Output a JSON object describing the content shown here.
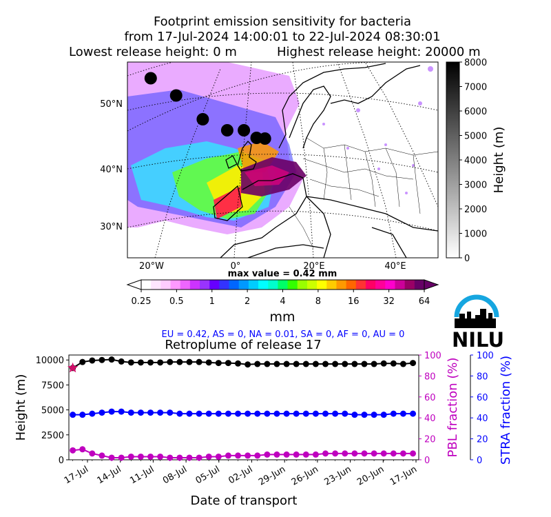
{
  "header": {
    "title_line1": "Footprint emission sensitivity for bacteria",
    "title_line2": "from 17-Jul-2024 14:00:01 to 22-Jul-2024 08:30:01",
    "lowest_release": "Lowest release height: 0 m",
    "highest_release": "Highest release height: 20000 m"
  },
  "map": {
    "lat_labels": [
      "50°N",
      "40°N",
      "30°N"
    ],
    "lon_labels": [
      "20°W",
      "0°",
      "20°E",
      "40°E"
    ],
    "max_value_text": "max value = 0.42 mm",
    "release_points": [
      {
        "lon": -22,
        "lat": 55
      },
      {
        "lon": -15,
        "lat": 52
      },
      {
        "lon": -8,
        "lat": 48
      },
      {
        "lon": -2,
        "lat": 46
      },
      {
        "lon": 2,
        "lat": 46
      },
      {
        "lon": 5,
        "lat": 45
      },
      {
        "lon": 7,
        "lat": 45
      }
    ]
  },
  "height_colorbar": {
    "label": "Height (m)",
    "ticks": [
      "8000",
      "7000",
      "6000",
      "5000",
      "4000",
      "3000",
      "2000",
      "1000",
      "0"
    ]
  },
  "footprint_colorbar": {
    "unit_label": "mm",
    "ticks": [
      "0.25",
      "0.5",
      "1",
      "2",
      "4",
      "8",
      "16",
      "32",
      "64"
    ],
    "colors": [
      "#ffffff",
      "#ffe6ff",
      "#ffccff",
      "#ff99ff",
      "#ee66ff",
      "#cc33ff",
      "#9933ff",
      "#6600ff",
      "#3333ff",
      "#0066ff",
      "#0099ff",
      "#00ccff",
      "#00ffff",
      "#00ffcc",
      "#00ff66",
      "#33ff00",
      "#99ff00",
      "#ccff00",
      "#ffff00",
      "#ffcc00",
      "#ff9900",
      "#ff6600",
      "#ff3333",
      "#ff0066",
      "#ff0099",
      "#ff00cc",
      "#cc0099",
      "#990066",
      "#660066"
    ]
  },
  "region_fractions": "EU = 0.42,  AS = 0,  NA = 0.01,  SA = 0,  AF = 0,  AU = 0",
  "logo_text": "NILU",
  "colors": {
    "height_series": "#000000",
    "pbl_series": "#bf00bf",
    "stra_series": "#0000ff",
    "release_star": "#d0106a"
  },
  "chart_data": {
    "type": "line",
    "title": "Retroplume of release 17",
    "xlabel": "Date of transport",
    "x_ticks": [
      "17-Jul",
      "14-Jul",
      "11-Jul",
      "08-Jul",
      "05-Jul",
      "02-Jul",
      "29-Jun",
      "26-Jun",
      "23-Jun",
      "20-Jun",
      "17-Jun"
    ],
    "y_left": {
      "label": "Height (m)",
      "ylim": [
        0,
        10500
      ],
      "ticks": [
        "0",
        "2500",
        "5000",
        "7500",
        "10000"
      ]
    },
    "y_right1": {
      "label": "PBL fraction (%)",
      "ylim": [
        0,
        100
      ],
      "ticks": [
        "0",
        "20",
        "40",
        "60",
        "80",
        "100"
      ]
    },
    "y_right2": {
      "label": "STRA fraction (%)",
      "ylim": [
        0,
        100
      ],
      "ticks": [
        "0",
        "20",
        "40",
        "60",
        "80",
        "100"
      ]
    },
    "x_days": [
      0,
      1,
      2,
      3,
      4,
      5,
      6,
      7,
      8,
      9,
      10,
      11,
      12,
      13,
      14,
      15,
      16,
      17,
      18,
      19,
      20,
      21,
      22,
      23,
      24,
      25,
      26,
      27,
      28,
      29,
      30,
      31,
      32,
      33,
      34,
      35
    ],
    "series": [
      {
        "axis": "left",
        "values": [
          9200,
          9800,
          9950,
          10000,
          10050,
          9850,
          9750,
          9750,
          9750,
          9750,
          9800,
          9800,
          9800,
          9800,
          9750,
          9700,
          9700,
          9650,
          9550,
          9600,
          9600,
          9600,
          9600,
          9600,
          9600,
          9600,
          9600,
          9600,
          9600,
          9600,
          9600,
          9600,
          9650,
          9650,
          9600,
          9700
        ]
      },
      {
        "axis": "right1",
        "values": [
          9,
          10,
          6,
          4,
          2,
          2,
          3,
          3,
          3,
          3,
          2,
          2,
          2,
          2,
          3,
          3,
          4,
          4,
          4,
          4,
          5,
          5,
          5,
          5,
          5,
          5,
          6,
          6,
          6,
          6,
          6,
          6,
          6,
          6,
          6,
          6
        ]
      },
      {
        "axis": "right2",
        "values": [
          43,
          43,
          44,
          45,
          46,
          46,
          45,
          45,
          45,
          45,
          45,
          44,
          44,
          44,
          44,
          44,
          44,
          44,
          44,
          44,
          44,
          44,
          44,
          44,
          44,
          44,
          44,
          44,
          44,
          43,
          43,
          43,
          43,
          44,
          44,
          44
        ]
      }
    ],
    "release_marker": {
      "day": 0,
      "height": 9200
    }
  }
}
